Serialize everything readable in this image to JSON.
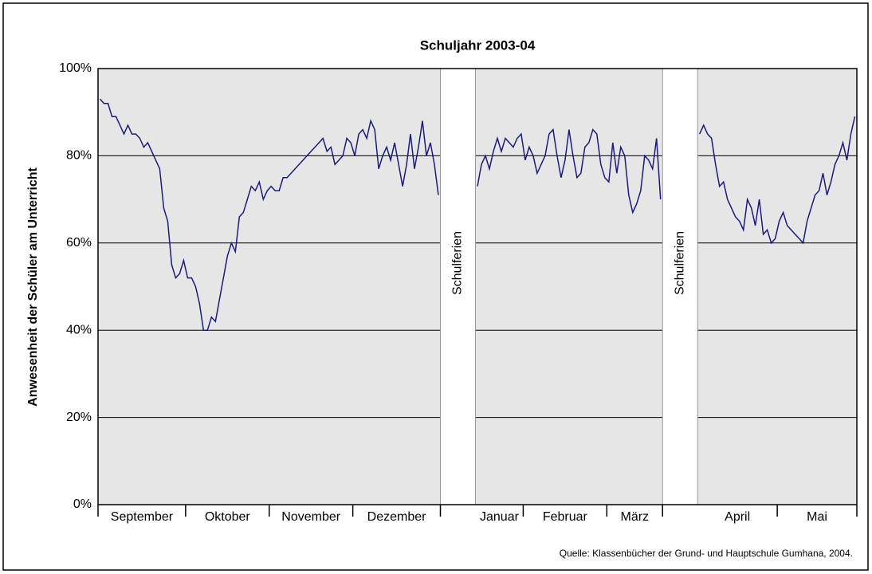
{
  "chart_data": {
    "type": "line",
    "title": "Schuljahr 2003-04",
    "y_label": "Anwesenheit der Schüler am Unterricht",
    "source": "Quelle: Klassenbücher der Grund- und Hauptschule Gumhana, 2004.",
    "categories": [
      "September",
      "Oktober",
      "November",
      "Dezember",
      "Januar",
      "Februar",
      "März",
      "April",
      "Mai"
    ],
    "values": [
      [
        93,
        92,
        92,
        89,
        89,
        87,
        85,
        87,
        85,
        85,
        84,
        82,
        83,
        81,
        79,
        77,
        68,
        65,
        55,
        52,
        53,
        56
      ],
      [
        52,
        52,
        50,
        46,
        40,
        40,
        43,
        42,
        47,
        52,
        57,
        60,
        58,
        66,
        67,
        70,
        73,
        72,
        74,
        70,
        72
      ],
      [
        73,
        72,
        72,
        75,
        75,
        76,
        77,
        78,
        79,
        80,
        81,
        82,
        83,
        84,
        81,
        82,
        78,
        79,
        80,
        84,
        83
      ],
      [
        80,
        85,
        86,
        84,
        88,
        86,
        77,
        80,
        82,
        79,
        83,
        78,
        73,
        78,
        85,
        77,
        82,
        88,
        80,
        83,
        78,
        71
      ],
      [
        73,
        78,
        80,
        77,
        81,
        84,
        81,
        84,
        83,
        82,
        84,
        85
      ],
      [
        79,
        82,
        80,
        76,
        78,
        80,
        85,
        86,
        80,
        75,
        79,
        86,
        80,
        75,
        76,
        82,
        83,
        86,
        85,
        78,
        75
      ],
      [
        74,
        83,
        76,
        82,
        80,
        71,
        67,
        69,
        72,
        80,
        79,
        77,
        84,
        70
      ],
      [
        85,
        87,
        85,
        84,
        78,
        73,
        74,
        70,
        68,
        66,
        65,
        63,
        70,
        68,
        64,
        70,
        62,
        63,
        60,
        61
      ],
      [
        65,
        67,
        64,
        63,
        62,
        61,
        60,
        65,
        68,
        71,
        72,
        76,
        71,
        74,
        78,
        80,
        83,
        79,
        85,
        89
      ]
    ],
    "color": "#1a1a80",
    "annotations": [
      {
        "text": "Schulferien",
        "after": "Dezember"
      },
      {
        "text": "Schulferien",
        "after": "März"
      }
    ],
    "ylim": [
      0,
      100
    ],
    "yticks": [
      {
        "value": 0,
        "label": "0%"
      },
      {
        "value": 20,
        "label": "20%"
      },
      {
        "value": 40,
        "label": "40%"
      },
      {
        "value": 60,
        "label": "60%"
      },
      {
        "value": 80,
        "label": "80%"
      },
      {
        "value": 100,
        "label": "100%"
      }
    ],
    "grid": true
  }
}
